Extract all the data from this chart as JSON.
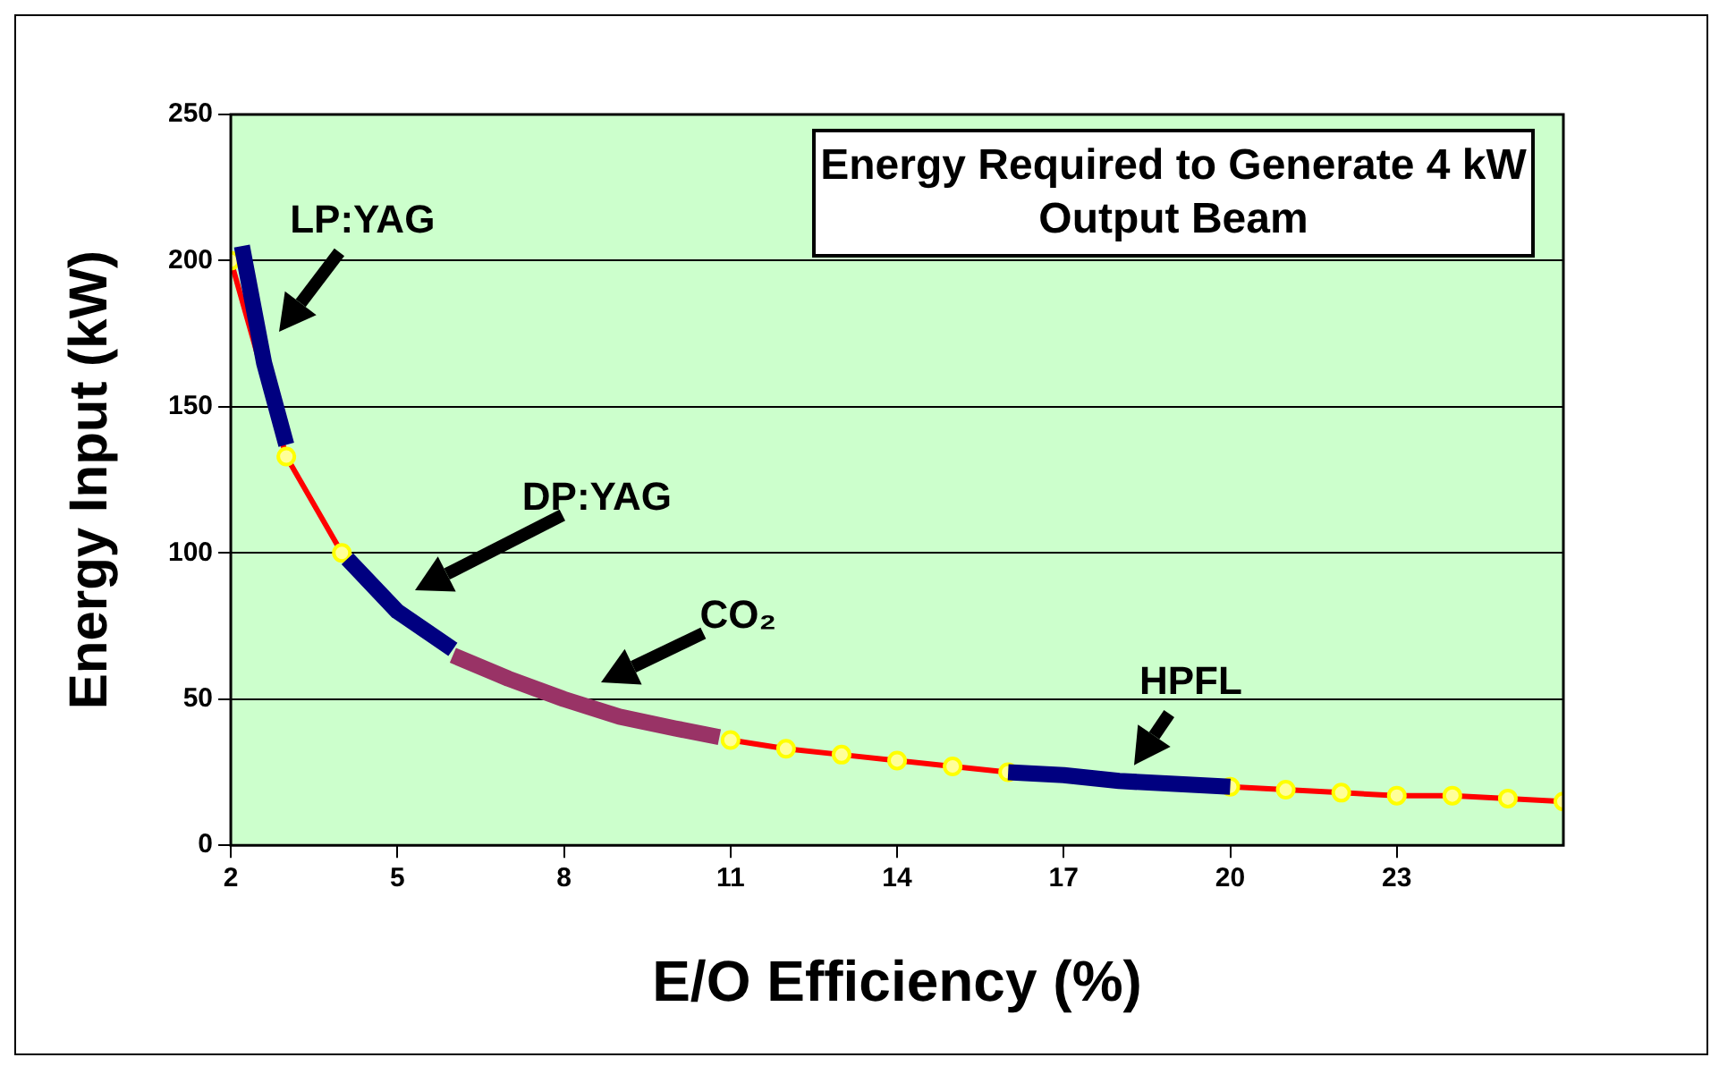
{
  "chart_data": {
    "type": "line",
    "title": "Energy Required to Generate 4 kW Output Beam",
    "xlabel": "E/O Efficiency (%)",
    "ylabel": "Energy Input (kW)",
    "xlim": [
      2,
      26
    ],
    "xticks": [
      2,
      5,
      8,
      11,
      14,
      17,
      20,
      23
    ],
    "ylim": [
      0,
      250
    ],
    "yticks": [
      0,
      50,
      100,
      150,
      200,
      250
    ],
    "grid": "y",
    "legend": false,
    "series": [
      {
        "color": "#ff0000",
        "marker": "circle",
        "x": [
          2,
          3,
          4,
          5,
          6,
          7,
          8,
          9,
          10,
          11,
          12,
          13,
          14,
          15,
          16,
          17,
          18,
          19,
          20,
          21,
          22,
          23,
          24,
          25,
          26
        ],
        "values": [
          200,
          133,
          100,
          null,
          null,
          null,
          null,
          null,
          null,
          36,
          33,
          31,
          29,
          27,
          25,
          null,
          null,
          null,
          20,
          19,
          18,
          17,
          17,
          16,
          15
        ]
      },
      {
        "name": "LP:YAG",
        "color": "#000080",
        "marker": "none",
        "x": [
          2.2,
          2.6,
          3
        ],
        "values": [
          205,
          165,
          137
        ]
      },
      {
        "name": "DP:YAG",
        "color": "#000080",
        "marker": "none",
        "x": [
          4.1,
          5,
          6
        ],
        "values": [
          98,
          80,
          67
        ]
      },
      {
        "name": "CO₂",
        "color": "#993366",
        "marker": "none",
        "x": [
          6,
          7,
          8,
          9,
          10,
          10.8
        ],
        "values": [
          65,
          57,
          50,
          44,
          40,
          37
        ]
      },
      {
        "name": "HPFL",
        "color": "#000080",
        "marker": "none",
        "x": [
          16,
          17,
          18,
          19,
          20
        ],
        "values": [
          25,
          24,
          22,
          21,
          20
        ]
      }
    ]
  }
}
